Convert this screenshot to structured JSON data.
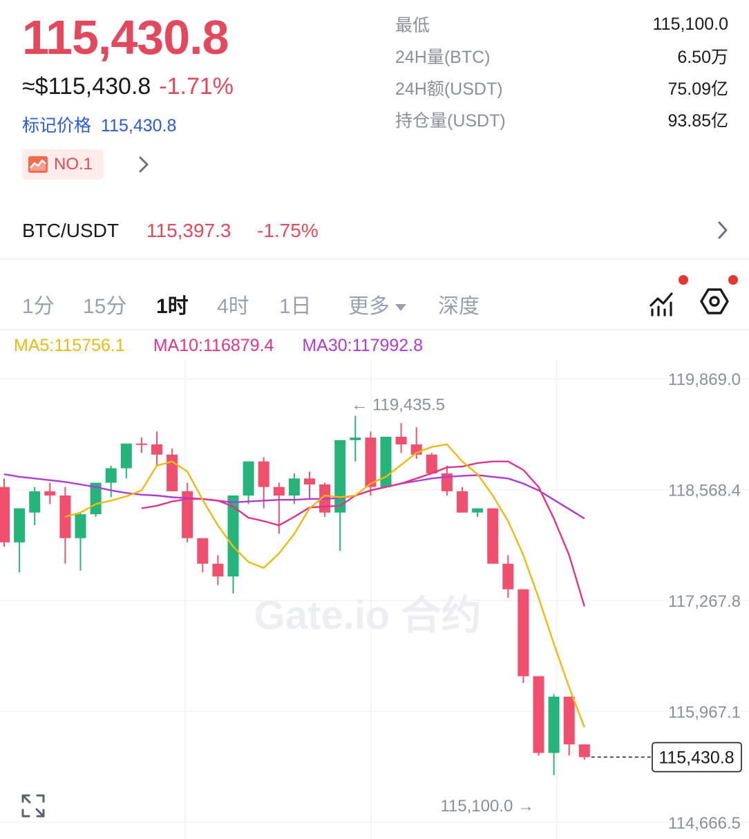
{
  "header": {
    "last_price": "115,430.8",
    "usd_price": "≈$115,430.8",
    "change_pct": "-1.71%",
    "mark_label": "标记价格",
    "mark_price": "115,430.8",
    "rank_badge": "NO.1",
    "rank_icon": "trend-chart-icon"
  },
  "stats": [
    {
      "label": "最低",
      "value": "115,100.0"
    },
    {
      "label": "24H量(BTC)",
      "value": "6.50万"
    },
    {
      "label": "24H额(USDT)",
      "value": "75.09亿"
    },
    {
      "label": "持仓量(USDT)",
      "value": "93.85亿"
    }
  ],
  "spot_pair": {
    "pair": "BTC/USDT",
    "price": "115,397.3",
    "change_pct": "-1.75%"
  },
  "tabs": {
    "items": [
      "1分",
      "15分",
      "1时",
      "4时",
      "1日"
    ],
    "active": "1时",
    "more_label": "更多",
    "depth_label": "深度",
    "tool_icons": [
      "indicator-icon",
      "settings-hexagon-icon"
    ]
  },
  "ma_legend": {
    "ma5": "MA5:115756.1",
    "ma10": "MA10:116879.4",
    "ma30": "MA30:117992.8"
  },
  "colors": {
    "up": "#26b47b",
    "down": "#f0506e",
    "ma5": "#f0b90b",
    "ma10": "#e0338a",
    "ma30": "#b03ad6",
    "accent_red": "#e4485d",
    "accent_blue": "#2a5bd7"
  },
  "chart_data": {
    "type": "candlestick",
    "watermark": "Gate.io 合约",
    "y_ticks": [
      "119,869.0",
      "118,568.4",
      "117,267.8",
      "115,967.1",
      "114,666.5"
    ],
    "y_tick_values": [
      119869.0,
      118568.4,
      117267.8,
      115967.1,
      114666.5
    ],
    "ylim": [
      114600,
      120000
    ],
    "high_label": "← 119,435.5",
    "high_value": 119435.5,
    "low_label": "115,100.0 →",
    "low_value": 115100.0,
    "last_price_label": "115,430.8",
    "last_price": 115430.8,
    "candles": [
      {
        "o": 118600,
        "h": 118700,
        "c": 117950,
        "l": 117900
      },
      {
        "o": 117950,
        "h": 118350,
        "c": 118350,
        "l": 117600
      },
      {
        "o": 118300,
        "h": 118600,
        "c": 118550,
        "l": 118150
      },
      {
        "o": 118550,
        "h": 118650,
        "c": 118500,
        "l": 118400
      },
      {
        "o": 118500,
        "h": 118600,
        "c": 118000,
        "l": 117700
      },
      {
        "o": 118000,
        "h": 118300,
        "c": 118280,
        "l": 117620
      },
      {
        "o": 118280,
        "h": 118650,
        "c": 118650,
        "l": 118250
      },
      {
        "o": 118650,
        "h": 118850,
        "c": 118820,
        "l": 118480
      },
      {
        "o": 118820,
        "h": 119100,
        "c": 119110,
        "l": 118700
      },
      {
        "o": 119110,
        "h": 119180,
        "c": 119100,
        "l": 119000
      },
      {
        "o": 119100,
        "h": 119250,
        "c": 118980,
        "l": 118850
      },
      {
        "o": 118980,
        "h": 119050,
        "c": 118550,
        "l": 118550
      },
      {
        "o": 118550,
        "h": 118650,
        "c": 118000,
        "l": 117950
      },
      {
        "o": 118000,
        "h": 118000,
        "c": 117700,
        "l": 117600
      },
      {
        "o": 117700,
        "h": 117800,
        "c": 117550,
        "l": 117450
      },
      {
        "o": 117550,
        "h": 118500,
        "c": 118500,
        "l": 117350
      },
      {
        "o": 118500,
        "h": 118900,
        "c": 118900,
        "l": 118400
      },
      {
        "o": 118900,
        "h": 118950,
        "c": 118600,
        "l": 118350
      },
      {
        "o": 118600,
        "h": 118650,
        "c": 118500,
        "l": 118050
      },
      {
        "o": 118500,
        "h": 118760,
        "c": 118700,
        "l": 118400
      },
      {
        "o": 118700,
        "h": 118780,
        "c": 118630,
        "l": 118450
      },
      {
        "o": 118630,
        "h": 118650,
        "c": 118300,
        "l": 118250
      },
      {
        "o": 118300,
        "h": 119150,
        "c": 119150,
        "l": 117850
      },
      {
        "o": 119150,
        "h": 119435.5,
        "c": 119180,
        "l": 118900
      },
      {
        "o": 119180,
        "h": 119250,
        "c": 118600,
        "l": 118500
      },
      {
        "o": 118600,
        "h": 119150,
        "c": 119190,
        "l": 118600
      },
      {
        "o": 119190,
        "h": 119350,
        "c": 119100,
        "l": 119000
      },
      {
        "o": 119100,
        "h": 119300,
        "c": 118980,
        "l": 118930
      },
      {
        "o": 118980,
        "h": 119000,
        "c": 118760,
        "l": 118760
      },
      {
        "o": 118760,
        "h": 118850,
        "c": 118550,
        "l": 118500
      },
      {
        "o": 118550,
        "h": 118600,
        "c": 118300,
        "l": 118300
      },
      {
        "o": 118300,
        "h": 118350,
        "c": 118350,
        "l": 118250
      },
      {
        "o": 118350,
        "h": 118350,
        "c": 117700,
        "l": 117700
      },
      {
        "o": 117700,
        "h": 117800,
        "c": 117400,
        "l": 117300
      },
      {
        "o": 117400,
        "h": 117400,
        "c": 116380,
        "l": 116300
      },
      {
        "o": 116380,
        "h": 116380,
        "c": 115480,
        "l": 115450
      },
      {
        "o": 115480,
        "h": 116170,
        "c": 116140,
        "l": 115220
      },
      {
        "o": 116140,
        "h": 116140,
        "c": 115580,
        "l": 115450
      },
      {
        "o": 115580,
        "h": 115580,
        "c": 115430.8,
        "l": 115400
      }
    ],
    "ma5": [
      null,
      null,
      null,
      null,
      118250,
      118300,
      118400,
      118440,
      118490,
      118560,
      118850,
      118900,
      118780,
      118450,
      118150,
      117900,
      117720,
      117650,
      117820,
      118050,
      118350,
      118500,
      118480,
      118500,
      118640,
      118720,
      118860,
      119000,
      119070,
      119100,
      118900,
      118750,
      118500,
      118200,
      117800,
      117300,
      116760,
      116250,
      115780
    ],
    "ma10": [
      null,
      null,
      null,
      null,
      null,
      null,
      null,
      null,
      null,
      118350,
      118380,
      118430,
      118460,
      118460,
      118440,
      118370,
      118240,
      118200,
      118150,
      118250,
      118360,
      118370,
      118380,
      118500,
      118560,
      118600,
      118640,
      118700,
      118760,
      118830,
      118840,
      118880,
      118900,
      118900,
      118800,
      118600,
      118230,
      117800,
      117200
    ],
    "ma30": [
      118750,
      118720,
      118700,
      118680,
      118660,
      118630,
      118600,
      118560,
      118530,
      118510,
      118500,
      118480,
      118470,
      118460,
      118440,
      118420,
      118430,
      118440,
      118450,
      118450,
      118460,
      118460,
      118470,
      118500,
      118560,
      118600,
      118640,
      118670,
      118700,
      118720,
      118730,
      118740,
      118720,
      118700,
      118640,
      118560,
      118450,
      118340,
      118230
    ]
  }
}
